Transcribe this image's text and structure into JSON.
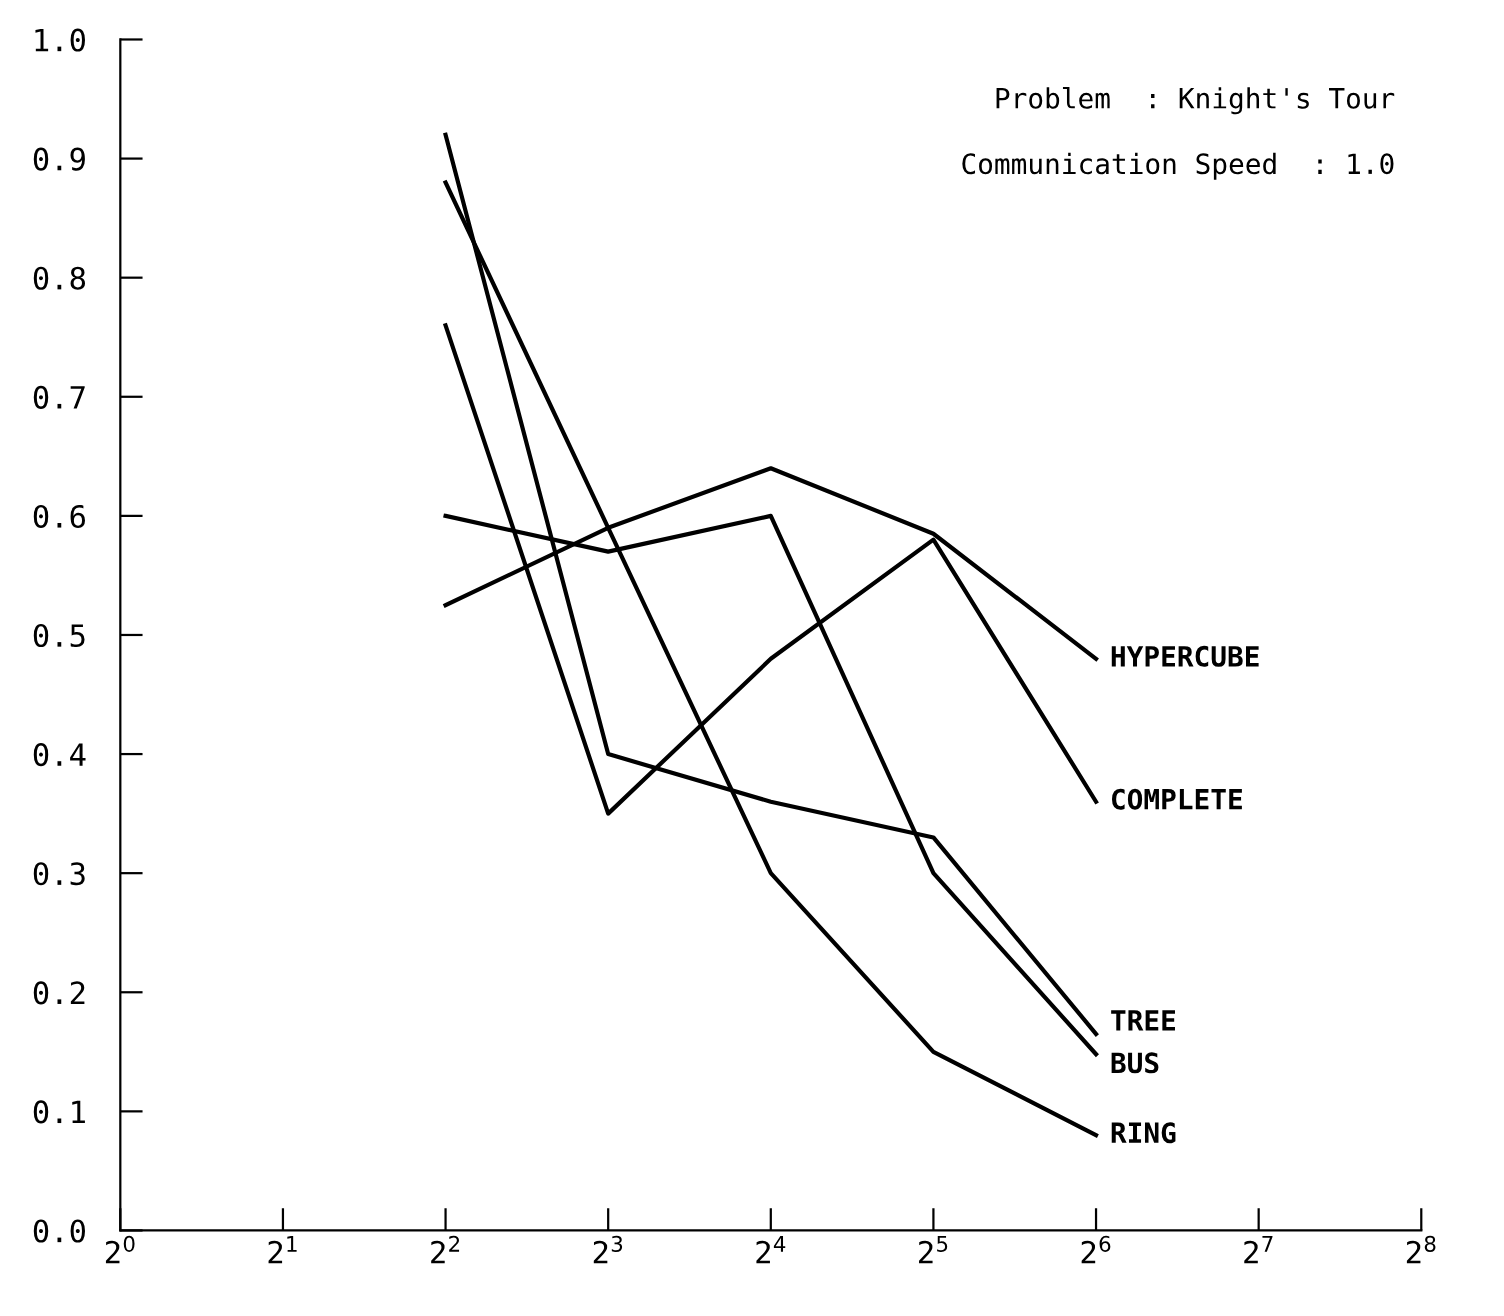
{
  "chart_data": {
    "type": "line",
    "x": [
      4,
      8,
      16,
      32,
      64
    ],
    "series": [
      {
        "name": "HYPERCUBE",
        "color": "#000000",
        "values": [
          0.525,
          0.59,
          0.64,
          0.585,
          0.48
        ]
      },
      {
        "name": "COMPLETE",
        "color": "#000000",
        "values": [
          0.76,
          0.35,
          0.48,
          0.58,
          0.36
        ]
      },
      {
        "name": "TREE",
        "color": "#000000",
        "values": [
          0.92,
          0.4,
          0.36,
          0.33,
          0.165
        ]
      },
      {
        "name": "BUS",
        "color": "#000000",
        "values": [
          0.6,
          0.57,
          0.6,
          0.3,
          0.148
        ]
      },
      {
        "name": "RING",
        "color": "#000000",
        "values": [
          0.88,
          0.59,
          0.3,
          0.15,
          0.08
        ]
      }
    ],
    "log": "x",
    "xlim": [
      1,
      256
    ],
    "xticks": [
      {
        "value": 1,
        "label": "2$^{0}$"
      },
      {
        "value": 2,
        "label": "2$^{1}$"
      },
      {
        "value": 4,
        "label": "2$^{2}$"
      },
      {
        "value": 8,
        "label": "2$^{3}$"
      },
      {
        "value": 16,
        "label": "2$^{4}$"
      },
      {
        "value": 32,
        "label": "2$^{5}$"
      },
      {
        "value": 64,
        "label": "2$^{6}$"
      },
      {
        "value": 128,
        "label": "2$^{7}$"
      },
      {
        "value": 256,
        "label": "2$^{8}$"
      }
    ],
    "ylim": [
      0,
      1.0
    ],
    "yticks": [
      {
        "value": 0,
        "label": "0.0"
      },
      {
        "value": 0.1,
        "label": "0.1"
      },
      {
        "value": 0.2,
        "label": "0.2"
      },
      {
        "value": 0.3,
        "label": "0.3"
      },
      {
        "value": 0.4,
        "label": "0.4"
      },
      {
        "value": 0.5,
        "label": "0.5"
      },
      {
        "value": 0.6,
        "label": "0.6"
      },
      {
        "value": 0.7,
        "label": "0.7"
      },
      {
        "value": 0.8,
        "label": "0.8"
      },
      {
        "value": 0.9,
        "label": "0.9"
      },
      {
        "value": 1.0,
        "label": "1.0"
      }
    ],
    "annotations": [
      "Problem  : Knight's Tour",
      "Communication Speed  : 1.0"
    ],
    "grid": false,
    "legend": false,
    "marker": "none",
    "line_style": "solid"
  }
}
